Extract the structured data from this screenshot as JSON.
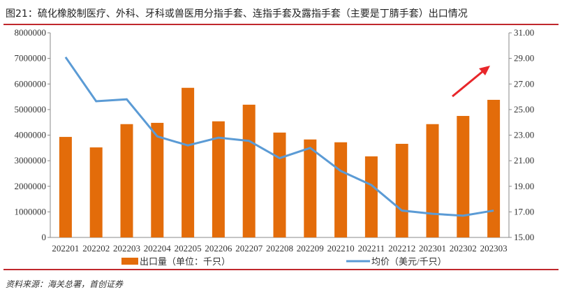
{
  "title": "图21：硫化橡胶制医疗、外科、牙科或兽医用分指手套、连指手套及露指手套（主要是丁腈手套）出口情况",
  "source": "资料来源：海关总署，首创证券",
  "colors": {
    "bar": "#e36c0a",
    "line": "#5b9bd5",
    "arrow": "#e8262a",
    "rule": "#c0282d"
  },
  "chart_data": {
    "type": "bar+line",
    "categories": [
      "202201",
      "202202",
      "202203",
      "202204",
      "202205",
      "202206",
      "202207",
      "202208",
      "202209",
      "202210",
      "202211",
      "202212",
      "202301",
      "202302",
      "202303"
    ],
    "series": [
      {
        "name": "出口量（单位：千只）",
        "type": "bar",
        "axis": "left",
        "values": [
          3930000,
          3520000,
          4430000,
          4480000,
          5850000,
          4540000,
          5190000,
          4100000,
          3830000,
          3720000,
          3170000,
          3660000,
          4430000,
          4750000,
          5380000
        ]
      },
      {
        "name": "均价（美元/千只）",
        "type": "line",
        "axis": "right",
        "values": [
          29.1,
          25.65,
          25.8,
          22.9,
          22.2,
          22.8,
          22.55,
          21.2,
          22.0,
          20.2,
          19.1,
          17.1,
          16.85,
          16.7,
          17.1
        ]
      }
    ],
    "left_axis": {
      "range": [
        0,
        8000000
      ],
      "ticks": [
        "0",
        "1000000",
        "2000000",
        "3000000",
        "4000000",
        "5000000",
        "6000000",
        "7000000",
        "8000000"
      ]
    },
    "right_axis": {
      "range": [
        15,
        31
      ],
      "ticks": [
        "15.00",
        "17.00",
        "19.00",
        "21.00",
        "23.00",
        "25.00",
        "27.00",
        "29.00",
        "31.00"
      ]
    },
    "grid": false,
    "legend": "bottom",
    "annotation": "red upward arrow near recent months"
  }
}
